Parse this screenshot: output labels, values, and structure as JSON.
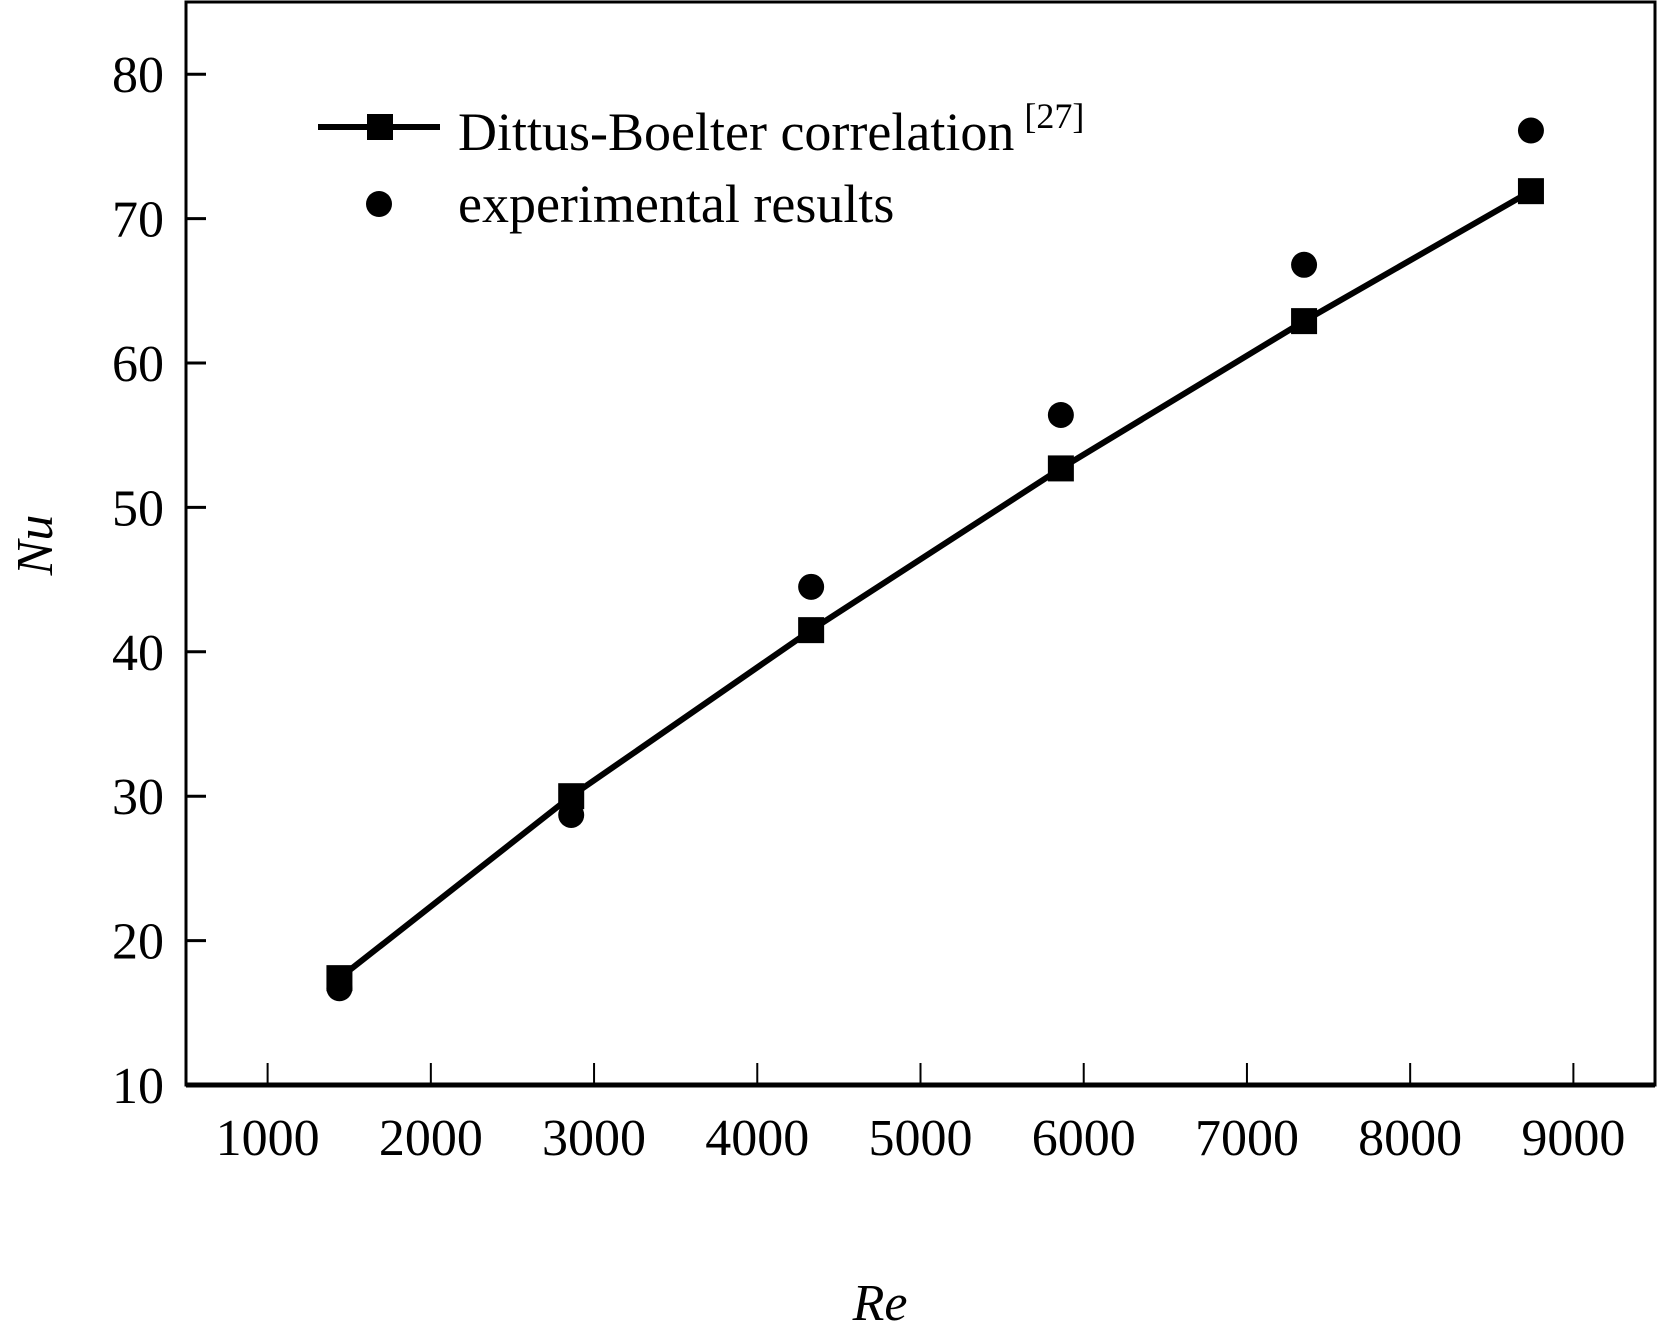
{
  "chart_data": {
    "type": "line",
    "title": "",
    "xlabel": "Re",
    "ylabel": "Nu",
    "xlim": [
      500,
      9500
    ],
    "ylim": [
      10,
      85
    ],
    "xticks": [
      1000,
      2000,
      3000,
      4000,
      5000,
      6000,
      7000,
      8000,
      9000
    ],
    "yticks": [
      10,
      20,
      30,
      40,
      50,
      60,
      70,
      80
    ],
    "xtick_labels": [
      "1000",
      "2000",
      "3000",
      "4000",
      "5000",
      "6000",
      "7000",
      "8000",
      "9000"
    ],
    "ytick_labels": [
      "10",
      "20",
      "30",
      "40",
      "50",
      "60",
      "70",
      "80"
    ],
    "grid": false,
    "legend_position": "top-left",
    "series": [
      {
        "name": "Dittus-Boelter correlation",
        "name_sup": "[27]",
        "style": "line-square",
        "x": [
          1440,
          2860,
          4330,
          5860,
          7350,
          8740
        ],
        "y": [
          17.4,
          30.0,
          41.5,
          52.7,
          62.9,
          71.9
        ]
      },
      {
        "name": "experimental results",
        "style": "circle",
        "x": [
          1440,
          2860,
          4330,
          5860,
          7350,
          8740
        ],
        "y": [
          16.7,
          28.7,
          44.5,
          56.4,
          66.8,
          76.1
        ]
      }
    ],
    "colors": {
      "line": "#000000",
      "marker": "#000000"
    }
  }
}
